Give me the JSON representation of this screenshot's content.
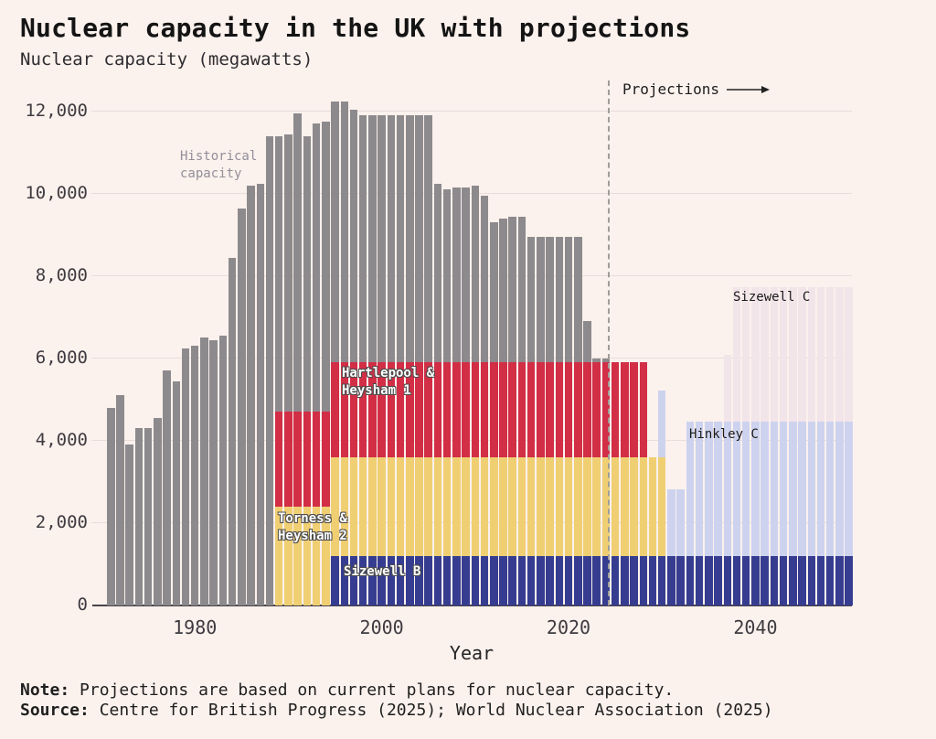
{
  "title": "Nuclear capacity in the UK with projections",
  "subtitle": "Nuclear capacity (megawatts)",
  "projections": {
    "label": "Projections"
  },
  "annotations": {
    "historical": "Historical\n capacity",
    "hartlepool": "Hartlepool &\nHeysham 1",
    "torness": "Torness &\nHeysham 2",
    "sizewell_b": "Sizewell B",
    "hinkley_c": "Hinkley C",
    "sizewell_c": "Sizewell C"
  },
  "y_axis": {
    "ticks": [
      {
        "label": "0",
        "value": 0
      },
      {
        "label": "2,000",
        "value": 2000
      },
      {
        "label": "4,000",
        "value": 4000
      },
      {
        "label": "6,000",
        "value": 6000
      },
      {
        "label": "8,000",
        "value": 8000
      },
      {
        "label": "10,000",
        "value": 10000
      },
      {
        "label": "12,000",
        "value": 12000
      }
    ]
  },
  "x_axis": {
    "title": "Year",
    "ticks": [
      {
        "label": "1980",
        "year": 1980
      },
      {
        "label": "2000",
        "year": 2000
      },
      {
        "label": "2020",
        "year": 2020
      },
      {
        "label": "2040",
        "year": 2040
      }
    ]
  },
  "note": {
    "label": "Note:",
    "text": " Projections are based on current plans for nuclear capacity."
  },
  "source": {
    "label": "Source:",
    "text": " Centre for British Progress (2025); World Nuclear Association (2025)"
  },
  "colors": {
    "background": "#fbf1ed",
    "historical_gray": "#8d8a8d",
    "hartlepool_red": "#d22e46",
    "torness_yellow": "#f0cf73",
    "sizewell_b_blue": "#363d90",
    "hinkley_c_lavender": "#cdd3ee",
    "sizewell_c_pink": "#f2e5e9",
    "gridline": "#e8ddda",
    "axis": "#47444a"
  },
  "chart_data": {
    "type": "bar",
    "stacked": true,
    "title": "Nuclear capacity in the UK with projections",
    "ylabel": "Nuclear capacity (megawatts)",
    "xlabel": "Year",
    "ylim": [
      0,
      12750
    ],
    "gridline_step": 2000,
    "projection_boundary_year": 2024.5,
    "categories": [
      1971,
      1972,
      1973,
      1974,
      1975,
      1976,
      1977,
      1978,
      1979,
      1980,
      1981,
      1982,
      1983,
      1984,
      1985,
      1986,
      1987,
      1988,
      1989,
      1990,
      1991,
      1992,
      1993,
      1994,
      1995,
      1996,
      1997,
      1998,
      1999,
      2000,
      2001,
      2002,
      2003,
      2004,
      2005,
      2006,
      2007,
      2008,
      2009,
      2010,
      2011,
      2012,
      2013,
      2014,
      2015,
      2016,
      2017,
      2018,
      2019,
      2020,
      2021,
      2022,
      2023,
      2024,
      2025,
      2026,
      2027,
      2028,
      2029,
      2030,
      2031,
      2032,
      2033,
      2034,
      2035,
      2036,
      2037,
      2038,
      2039,
      2040,
      2041,
      2042,
      2043,
      2044,
      2045,
      2046,
      2047,
      2048,
      2049,
      2050
    ],
    "series": [
      {
        "name": "Sizewell B",
        "key": "sizewell_b",
        "color": "#363d90",
        "values": [
          0,
          0,
          0,
          0,
          0,
          0,
          0,
          0,
          0,
          0,
          0,
          0,
          0,
          0,
          0,
          0,
          0,
          0,
          0,
          0,
          0,
          0,
          0,
          0,
          1200,
          1200,
          1200,
          1200,
          1200,
          1200,
          1200,
          1200,
          1200,
          1200,
          1200,
          1200,
          1200,
          1200,
          1200,
          1200,
          1200,
          1200,
          1200,
          1200,
          1200,
          1200,
          1200,
          1200,
          1200,
          1200,
          1200,
          1200,
          1200,
          1200,
          1200,
          1200,
          1200,
          1200,
          1200,
          1200,
          1200,
          1200,
          1200,
          1200,
          1200,
          1200,
          1200,
          1200,
          1200,
          1200,
          1200,
          1200,
          1200,
          1200,
          1200,
          1200,
          1200,
          1200,
          1200,
          1200
        ]
      },
      {
        "name": "Torness & Heysham 2",
        "key": "torness_heysham_2",
        "color": "#f0cf73",
        "values": [
          0,
          0,
          0,
          0,
          0,
          0,
          0,
          0,
          0,
          0,
          0,
          0,
          0,
          0,
          0,
          0,
          0,
          0,
          2400,
          2400,
          2400,
          2400,
          2400,
          2400,
          2400,
          2400,
          2400,
          2400,
          2400,
          2400,
          2400,
          2400,
          2400,
          2400,
          2400,
          2400,
          2400,
          2400,
          2400,
          2400,
          2400,
          2400,
          2400,
          2400,
          2400,
          2400,
          2400,
          2400,
          2400,
          2400,
          2400,
          2400,
          2400,
          2400,
          2400,
          2400,
          2400,
          2400,
          2400,
          2400,
          0,
          0,
          0,
          0,
          0,
          0,
          0,
          0,
          0,
          0,
          0,
          0,
          0,
          0,
          0,
          0,
          0,
          0,
          0,
          0
        ]
      },
      {
        "name": "Hartlepool & Heysham 1",
        "key": "hartlepool_heysham_1",
        "color": "#d22e46",
        "values": [
          0,
          0,
          0,
          0,
          0,
          0,
          0,
          0,
          0,
          0,
          0,
          0,
          0,
          0,
          0,
          0,
          0,
          0,
          2300,
          2300,
          2300,
          2300,
          2300,
          2300,
          2300,
          2300,
          2300,
          2300,
          2300,
          2300,
          2300,
          2300,
          2300,
          2300,
          2300,
          2300,
          2300,
          2300,
          2300,
          2300,
          2300,
          2300,
          2300,
          2300,
          2300,
          2300,
          2300,
          2300,
          2300,
          2300,
          2300,
          2300,
          2300,
          2300,
          2300,
          2300,
          2300,
          2300,
          0,
          0,
          0,
          0,
          0,
          0,
          0,
          0,
          0,
          0,
          0,
          0,
          0,
          0,
          0,
          0,
          0,
          0,
          0,
          0,
          0,
          0
        ]
      },
      {
        "name": "Historical capacity",
        "key": "historical",
        "color": "#8d8a8d",
        "values": [
          4800,
          5100,
          3900,
          4300,
          4300,
          4550,
          5700,
          5450,
          6250,
          6300,
          6500,
          6450,
          6550,
          8450,
          9650,
          10200,
          10250,
          11400,
          6700,
          6750,
          7250,
          6700,
          7000,
          7050,
          6350,
          6350,
          6150,
          6000,
          6000,
          6000,
          6000,
          6000,
          6000,
          6000,
          6000,
          4350,
          4200,
          4250,
          4250,
          4300,
          4050,
          3400,
          3500,
          3550,
          3550,
          3050,
          3050,
          3050,
          3050,
          3050,
          3050,
          1000,
          100,
          100,
          0,
          0,
          0,
          0,
          0,
          0,
          0,
          0,
          0,
          0,
          0,
          0,
          0,
          0,
          0,
          0,
          0,
          0,
          0,
          0,
          0,
          0,
          0,
          0,
          0,
          0
        ]
      },
      {
        "name": "Hinkley C",
        "key": "hinkley_c",
        "color": "#cdd3ee",
        "values": [
          0,
          0,
          0,
          0,
          0,
          0,
          0,
          0,
          0,
          0,
          0,
          0,
          0,
          0,
          0,
          0,
          0,
          0,
          0,
          0,
          0,
          0,
          0,
          0,
          0,
          0,
          0,
          0,
          0,
          0,
          0,
          0,
          0,
          0,
          0,
          0,
          0,
          0,
          0,
          0,
          0,
          0,
          0,
          0,
          0,
          0,
          0,
          0,
          0,
          0,
          0,
          0,
          0,
          0,
          0,
          0,
          0,
          0,
          0,
          1630,
          1630,
          1630,
          3260,
          3260,
          3260,
          3260,
          3260,
          3260,
          3260,
          3260,
          3260,
          3260,
          3260,
          3260,
          3260,
          3260,
          3260,
          3260,
          3260,
          3260
        ]
      },
      {
        "name": "Sizewell C",
        "key": "sizewell_c",
        "color": "#f2e5e9",
        "values": [
          0,
          0,
          0,
          0,
          0,
          0,
          0,
          0,
          0,
          0,
          0,
          0,
          0,
          0,
          0,
          0,
          0,
          0,
          0,
          0,
          0,
          0,
          0,
          0,
          0,
          0,
          0,
          0,
          0,
          0,
          0,
          0,
          0,
          0,
          0,
          0,
          0,
          0,
          0,
          0,
          0,
          0,
          0,
          0,
          0,
          0,
          0,
          0,
          0,
          0,
          0,
          0,
          0,
          0,
          0,
          0,
          0,
          0,
          0,
          0,
          0,
          0,
          0,
          0,
          0,
          0,
          1630,
          3260,
          3260,
          3260,
          3260,
          3260,
          3260,
          3260,
          3260,
          3260,
          3260,
          3260,
          3260,
          3260
        ]
      }
    ]
  }
}
